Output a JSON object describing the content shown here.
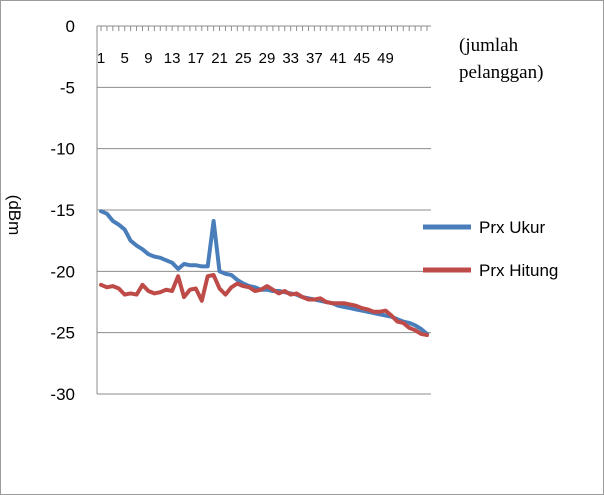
{
  "chart_data": {
    "type": "line",
    "title": "",
    "xlabel": "(jumlah pelanggan)",
    "xlabel_lines": [
      "(jumlah",
      "pelanggan)"
    ],
    "ylabel": "(dBm",
    "ylim": [
      -30,
      0
    ],
    "yticks": [
      0,
      -5,
      -10,
      -15,
      -20,
      -25,
      -30
    ],
    "xlim": [
      1,
      56
    ],
    "xtick_labels": [
      "1",
      "5",
      "9",
      "13",
      "17",
      "21",
      "25",
      "29",
      "33",
      "37",
      "41",
      "45",
      "49"
    ],
    "grid": "horizontal",
    "legend_position": "right",
    "colors": {
      "Prx Ukur": "#4a7ebb",
      "Prx Hitung": "#be4b48",
      "grid": "#8c8c8c"
    },
    "series": [
      {
        "name": "Prx Ukur",
        "x": [
          1,
          2,
          3,
          4,
          5,
          6,
          7,
          8,
          9,
          10,
          11,
          12,
          13,
          14,
          15,
          16,
          17,
          18,
          19,
          20,
          21,
          22,
          23,
          24,
          25,
          26,
          27,
          28,
          29,
          30,
          31,
          32,
          33,
          34,
          35,
          36,
          37,
          38,
          39,
          40,
          41,
          42,
          43,
          44,
          45,
          46,
          47,
          48,
          49,
          50,
          51,
          52,
          53,
          54,
          55,
          56
        ],
        "values": [
          -15.1,
          -15.3,
          -15.9,
          -16.2,
          -16.6,
          -17.5,
          -17.9,
          -18.2,
          -18.6,
          -18.8,
          -18.9,
          -19.1,
          -19.3,
          -19.8,
          -19.4,
          -19.5,
          -19.5,
          -19.6,
          -19.6,
          -15.9,
          -20.0,
          -20.2,
          -20.3,
          -20.7,
          -21.0,
          -21.2,
          -21.3,
          -21.5,
          -21.5,
          -21.6,
          -21.6,
          -21.7,
          -21.8,
          -21.9,
          -22.1,
          -22.2,
          -22.3,
          -22.4,
          -22.5,
          -22.6,
          -22.8,
          -22.9,
          -23.0,
          -23.1,
          -23.2,
          -23.3,
          -23.4,
          -23.5,
          -23.6,
          -23.7,
          -23.9,
          -24.1,
          -24.2,
          -24.4,
          -24.7,
          -25.1
        ]
      },
      {
        "name": "Prx Hitung",
        "x": [
          1,
          2,
          3,
          4,
          5,
          6,
          7,
          8,
          9,
          10,
          11,
          12,
          13,
          14,
          15,
          16,
          17,
          18,
          19,
          20,
          21,
          22,
          23,
          24,
          25,
          26,
          27,
          28,
          29,
          30,
          31,
          32,
          33,
          34,
          35,
          36,
          37,
          38,
          39,
          40,
          41,
          42,
          43,
          44,
          45,
          46,
          47,
          48,
          49,
          50,
          51,
          52,
          53,
          54,
          55,
          56
        ],
        "values": [
          -21.1,
          -21.3,
          -21.2,
          -21.4,
          -21.9,
          -21.8,
          -21.9,
          -21.1,
          -21.6,
          -21.8,
          -21.7,
          -21.5,
          -21.6,
          -20.4,
          -22.1,
          -21.5,
          -21.4,
          -22.4,
          -20.4,
          -20.3,
          -21.4,
          -21.9,
          -21.3,
          -21.0,
          -21.2,
          -21.3,
          -21.6,
          -21.5,
          -21.2,
          -21.5,
          -21.8,
          -21.6,
          -21.9,
          -21.8,
          -22.1,
          -22.3,
          -22.3,
          -22.2,
          -22.5,
          -22.6,
          -22.6,
          -22.6,
          -22.7,
          -22.8,
          -23.0,
          -23.1,
          -23.3,
          -23.3,
          -23.2,
          -23.6,
          -24.1,
          -24.2,
          -24.6,
          -24.8,
          -25.1,
          -25.2
        ]
      }
    ]
  }
}
